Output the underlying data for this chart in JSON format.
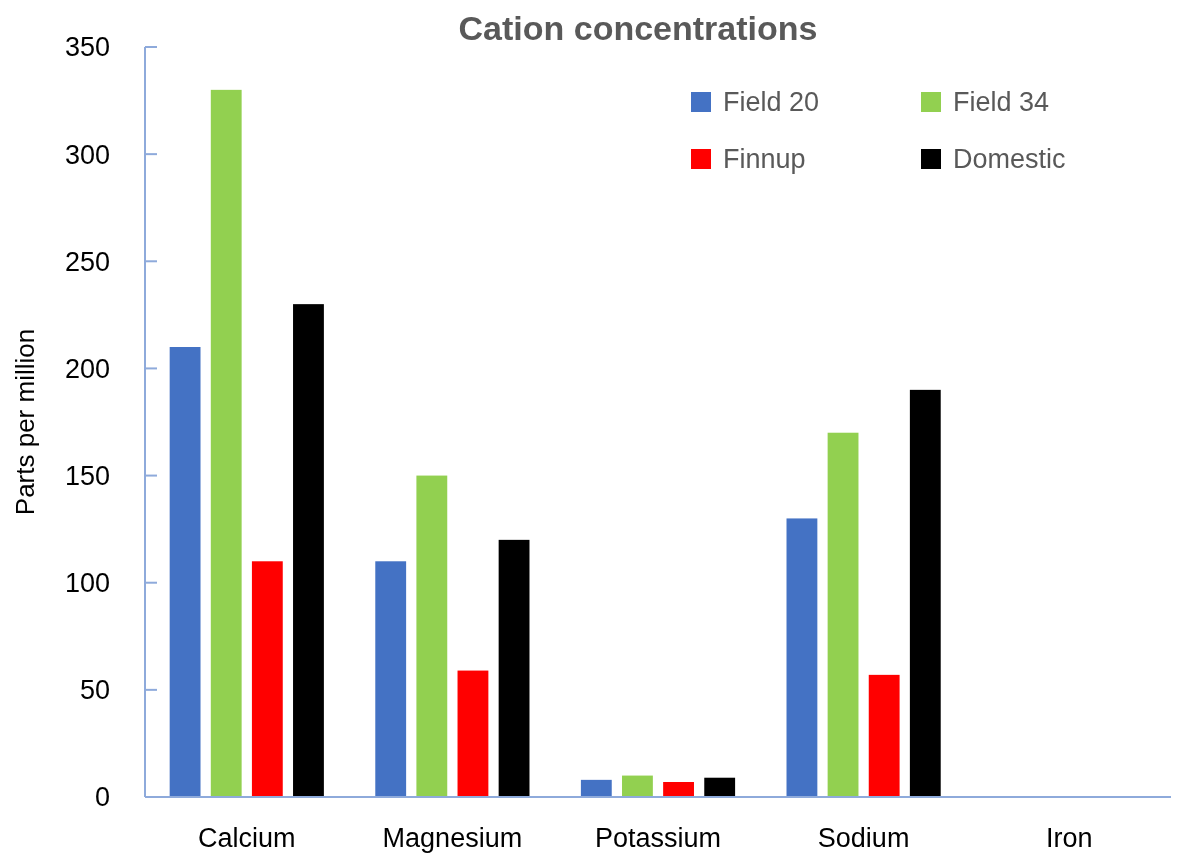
{
  "chart_data": {
    "type": "bar",
    "title": "Cation concentrations",
    "ylabel": "Parts per million",
    "categories": [
      "Calcium",
      "Magnesium",
      "Potassium",
      "Sodium",
      "Iron"
    ],
    "series": [
      {
        "name": "Field 20",
        "color": "#4472c4",
        "values": [
          210,
          110,
          8,
          130,
          null
        ]
      },
      {
        "name": "Field 34",
        "color": "#92d050",
        "values": [
          330,
          150,
          10,
          170,
          null
        ]
      },
      {
        "name": "Finnup",
        "color": "#ff0000",
        "values": [
          110,
          59,
          7,
          57,
          null
        ]
      },
      {
        "name": "Domestic",
        "color": "#000000",
        "values": [
          230,
          120,
          9,
          190,
          null
        ]
      }
    ],
    "ylim": [
      0,
      350
    ],
    "yticks": [
      0,
      50,
      100,
      150,
      200,
      250,
      300,
      350
    ],
    "grid": false,
    "legend": "top right"
  }
}
